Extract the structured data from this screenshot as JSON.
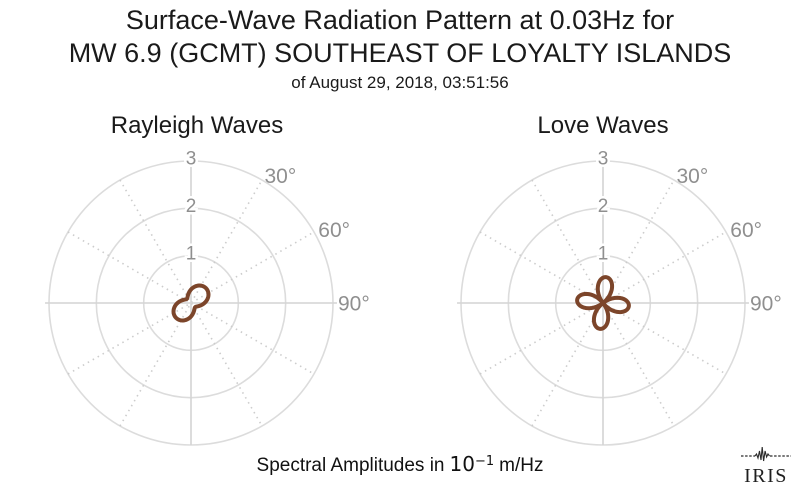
{
  "header": {
    "title_line1": "Surface-Wave Radiation Pattern at 0.03Hz for",
    "title_line2": "MW 6.9 (GCMT) SOUTHEAST OF LOYALTY ISLANDS",
    "title_line3": "of August 29, 2018, 03:51:56"
  },
  "caption": {
    "prefix": "Spectral Amplitudes in",
    "mantissa": "10",
    "exponent": "−1",
    "suffix": "m/Hz"
  },
  "logo": {
    "icon": "seismogram-icon",
    "text": "IRIS"
  },
  "colors": {
    "pattern_stroke": "#7c452a",
    "grid_circle": "#dcdcdc",
    "grid_axis": "#d4d4d4",
    "grid_dotted": "#cccccc",
    "tick_label": "#8f8f8f",
    "angle_label": "#8f8f8f",
    "title_text": "#1a1a1a"
  },
  "chart_data": [
    {
      "id": "rayleigh",
      "type": "polar",
      "title": "Rayleigh Waves",
      "r_axis": {
        "ticks": [
          1,
          2,
          3
        ],
        "max": 3,
        "unit": "10^-1 m/Hz"
      },
      "angle_axis": {
        "labeled_ticks_deg": [
          30,
          60,
          90
        ],
        "labels": [
          "30°",
          "60°",
          "90°"
        ],
        "solid_lines_deg": [
          0,
          90
        ],
        "dotted_diameters_deg": [
          30,
          60,
          120,
          150
        ]
      },
      "pattern": {
        "model": "r(az) = |offset + amplitude*cos(2*(az - rotation_deg))|",
        "offset": 0.285,
        "amplitude": 0.16,
        "rotation_deg": 45,
        "peak_radius": 0.45,
        "waist_radius": 0.13,
        "lobe_azimuths_deg": [
          45,
          225
        ]
      }
    },
    {
      "id": "love",
      "type": "polar",
      "title": "Love Waves",
      "r_axis": {
        "ticks": [
          1,
          2,
          3
        ],
        "max": 3,
        "unit": "10^-1 m/Hz"
      },
      "angle_axis": {
        "labeled_ticks_deg": [
          30,
          60,
          90
        ],
        "labels": [
          "30°",
          "60°",
          "90°"
        ],
        "solid_lines_deg": [
          0,
          90
        ],
        "dotted_diameters_deg": [
          30,
          60,
          120,
          150
        ]
      },
      "pattern": {
        "model": "r(az) = |offset + amplitude*cos(2*(az - rotation_deg))|",
        "offset": 0,
        "amplitude": 0.55,
        "rotation_deg": 7,
        "peak_radius": 0.55,
        "waist_radius": 0,
        "lobe_azimuths_deg": [
          7,
          97,
          187,
          277
        ]
      }
    }
  ]
}
